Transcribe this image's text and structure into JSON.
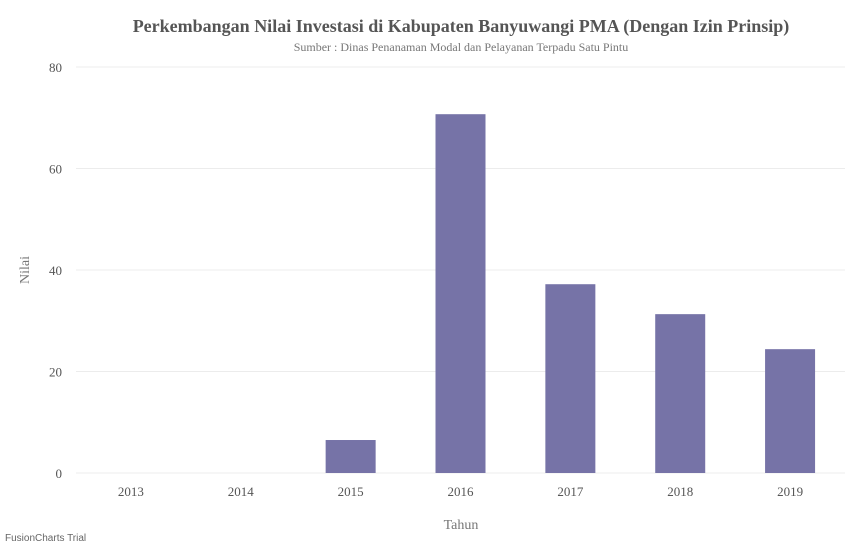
{
  "chart_data": {
    "type": "bar",
    "title": "Perkembangan Nilai Investasi di Kabupaten Banyuwangi PMA (Dengan Izin Prinsip)",
    "subtitle": "Sumber : Dinas Penanaman Modal dan Pelayanan Terpadu Satu Pintu",
    "xlabel": "Tahun",
    "ylabel": "Nilai",
    "categories": [
      "2013",
      "2014",
      "2015",
      "2016",
      "2017",
      "2018",
      "2019"
    ],
    "values": [
      0,
      0,
      6.5,
      70.7,
      37.2,
      31.3,
      24.4
    ],
    "ylim": [
      0,
      80
    ],
    "yticks": [
      0,
      20,
      40,
      60,
      80
    ],
    "grid": true,
    "bar_color": "#7673a7"
  },
  "watermark": "FusionCharts Trial"
}
